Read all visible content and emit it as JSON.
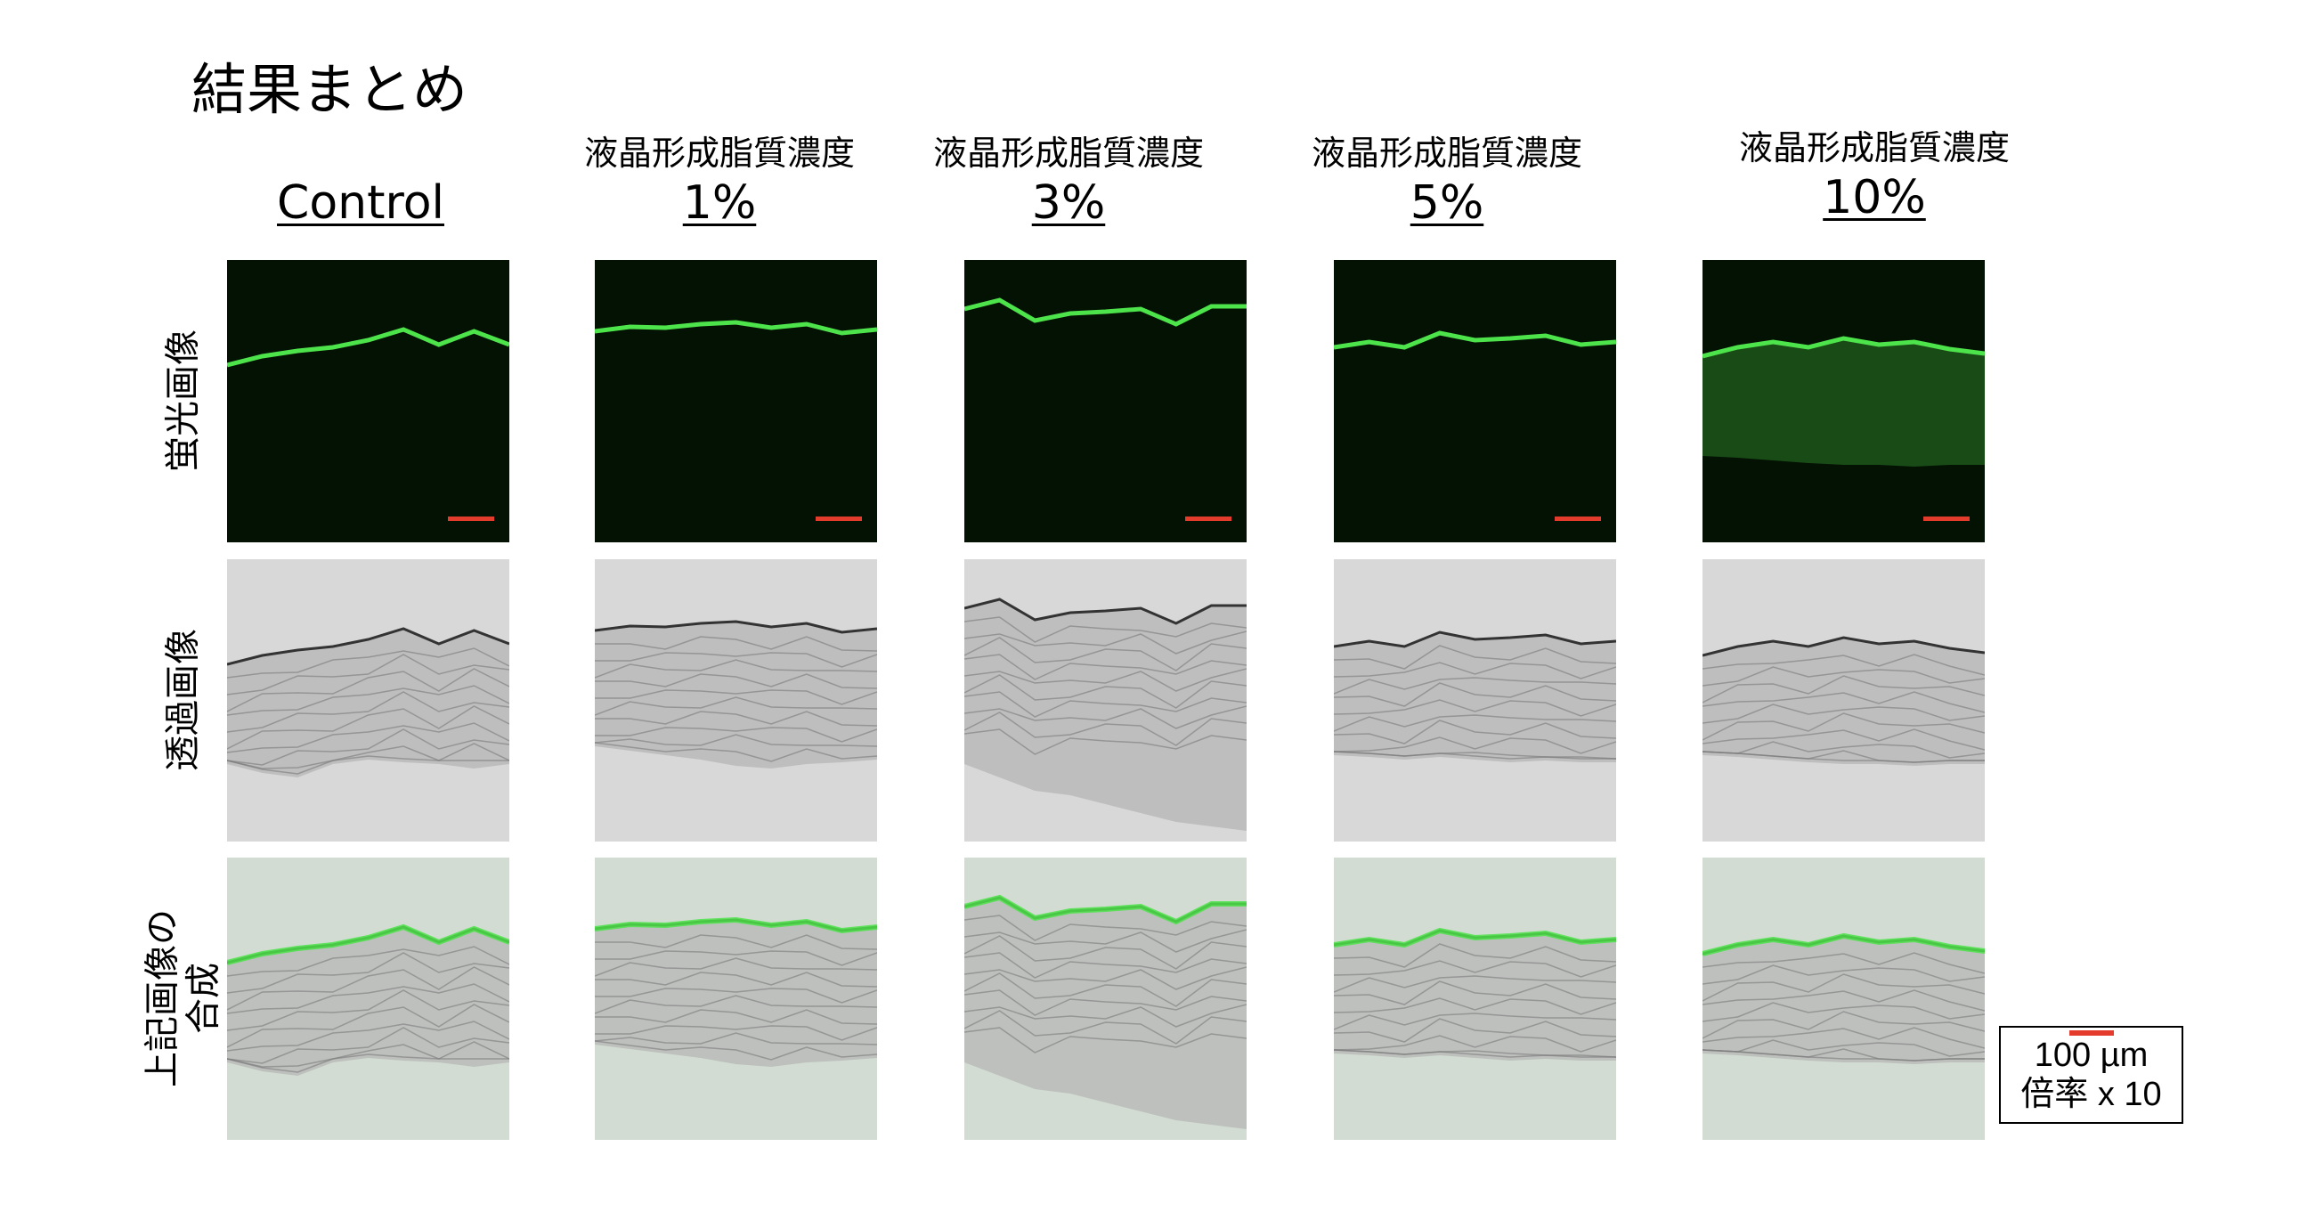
{
  "title": "結果まとめ",
  "columns": [
    {
      "label": "",
      "value": "Control"
    },
    {
      "label": "液晶形成脂質濃度",
      "value": "1%"
    },
    {
      "label": "液晶形成脂質濃度",
      "value": "3%"
    },
    {
      "label": "液晶形成脂質濃度",
      "value": "5%"
    },
    {
      "label": "液晶形成脂質濃度",
      "value": "10%"
    }
  ],
  "rows": [
    {
      "label_lines": [
        "蛍光画像"
      ],
      "type": "fluorescence"
    },
    {
      "label_lines": [
        "透過画像"
      ],
      "type": "brightfield"
    },
    {
      "label_lines": [
        "上記画像の",
        "合成"
      ],
      "type": "merged"
    }
  ],
  "legend": {
    "scale": "100 µm",
    "magnification": "倍率 x 10"
  },
  "colors": {
    "scale_bar": "#e33b2c",
    "fluorescence": "#4de34a",
    "background_dark": "#041204",
    "brightfield": "#d8d8d8",
    "merged": "#d2dcd2"
  }
}
